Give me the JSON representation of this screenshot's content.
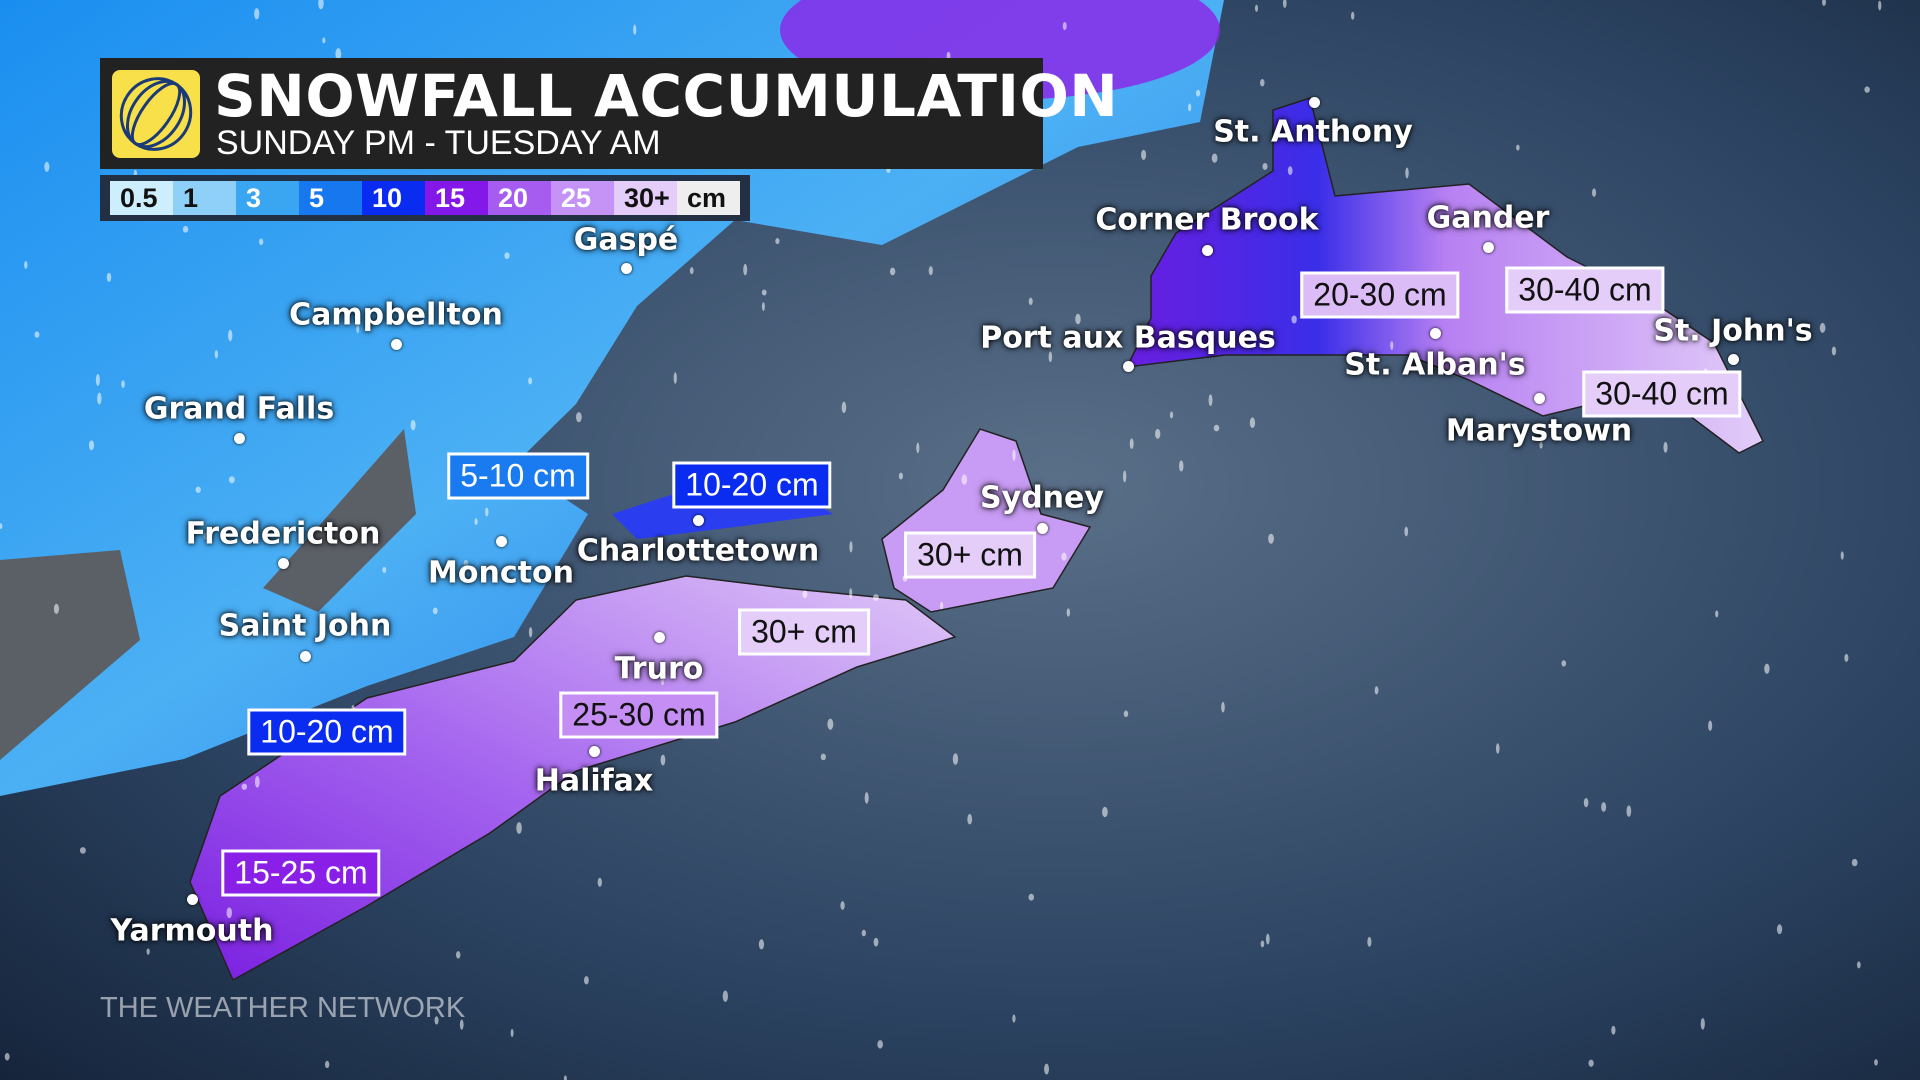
{
  "header": {
    "title": "SNOWFALL ACCUMULATION",
    "subtitle": "SUNDAY PM - TUESDAY AM",
    "logo": "the-weather-network-globe-logo"
  },
  "legend": {
    "items": [
      {
        "label": "0.5",
        "color": "#cdeefd"
      },
      {
        "label": "1",
        "color": "#8fd0f8"
      },
      {
        "label": "3",
        "color": "#3aa6f2"
      },
      {
        "label": "5",
        "color": "#1677ee"
      },
      {
        "label": "10",
        "color": "#0a2cf0"
      },
      {
        "label": "15",
        "color": "#8318e8"
      },
      {
        "label": "20",
        "color": "#a75cf0"
      },
      {
        "label": "25",
        "color": "#c493f5"
      },
      {
        "label": "30+",
        "color": "#e4cdf8"
      }
    ],
    "unit": "cm"
  },
  "cities": [
    {
      "name": "St. Anthony"
    },
    {
      "name": "Corner Brook"
    },
    {
      "name": "Gander"
    },
    {
      "name": "Port aux Basques"
    },
    {
      "name": "St. Alban's"
    },
    {
      "name": "St. John's"
    },
    {
      "name": "Marystown"
    },
    {
      "name": "Gaspé"
    },
    {
      "name": "Campbellton"
    },
    {
      "name": "Grand Falls"
    },
    {
      "name": "Fredericton"
    },
    {
      "name": "Moncton"
    },
    {
      "name": "Charlottetown"
    },
    {
      "name": "Sydney"
    },
    {
      "name": "Saint John"
    },
    {
      "name": "Truro"
    },
    {
      "name": "Halifax"
    },
    {
      "name": "Yarmouth"
    }
  ],
  "amounts": [
    {
      "text": "5-10 cm"
    },
    {
      "text": "10-20 cm"
    },
    {
      "text": "10-20 cm"
    },
    {
      "text": "15-25 cm"
    },
    {
      "text": "25-30 cm"
    },
    {
      "text": "30+ cm"
    },
    {
      "text": "30+ cm"
    },
    {
      "text": "20-30 cm"
    },
    {
      "text": "30-40 cm"
    },
    {
      "text": "30-40 cm"
    }
  ],
  "watermark": "THE WEATHER NETWORK"
}
